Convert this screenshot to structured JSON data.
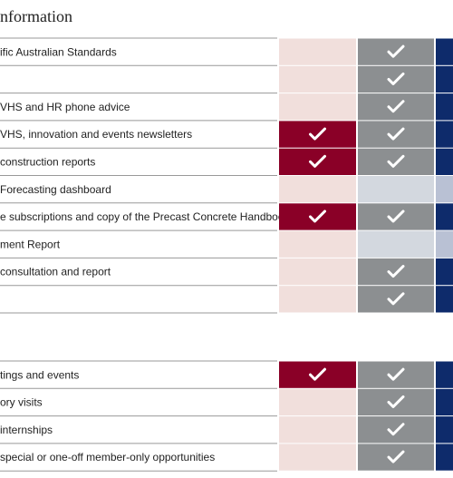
{
  "title": "nformation",
  "sections": [
    {
      "rows": [
        {
          "label": "ific Australian Standards",
          "checks": [
            false,
            true,
            true
          ]
        },
        {
          "label": null,
          "checks": [
            false,
            true,
            true
          ]
        },
        {
          "label": "VHS and HR phone advice",
          "checks": [
            false,
            true,
            true
          ]
        },
        {
          "label": "VHS, innovation and events newsletters",
          "checks": [
            true,
            true,
            true
          ]
        },
        {
          "label": "construction reports",
          "checks": [
            true,
            true,
            true
          ]
        },
        {
          "label": "Forecasting dashboard",
          "checks": [
            false,
            false,
            false
          ]
        },
        {
          "label": "e subscriptions and copy of the Precast Concrete Handbook",
          "checks": [
            true,
            true,
            true
          ]
        },
        {
          "label": "ment Report",
          "checks": [
            false,
            false,
            false
          ]
        },
        {
          "label": "consultation and report",
          "checks": [
            false,
            true,
            true
          ]
        },
        {
          "label": null,
          "checks": [
            false,
            true,
            true
          ]
        }
      ]
    },
    {
      "rows": [
        {
          "label": "tings and events",
          "checks": [
            true,
            true,
            true
          ]
        },
        {
          "label": "ory visits",
          "checks": [
            false,
            true,
            true
          ]
        },
        {
          "label": "internships",
          "checks": [
            false,
            true,
            true
          ]
        },
        {
          "label": "special or one-off member-only opportunities",
          "checks": [
            false,
            true,
            true
          ]
        }
      ]
    }
  ]
}
